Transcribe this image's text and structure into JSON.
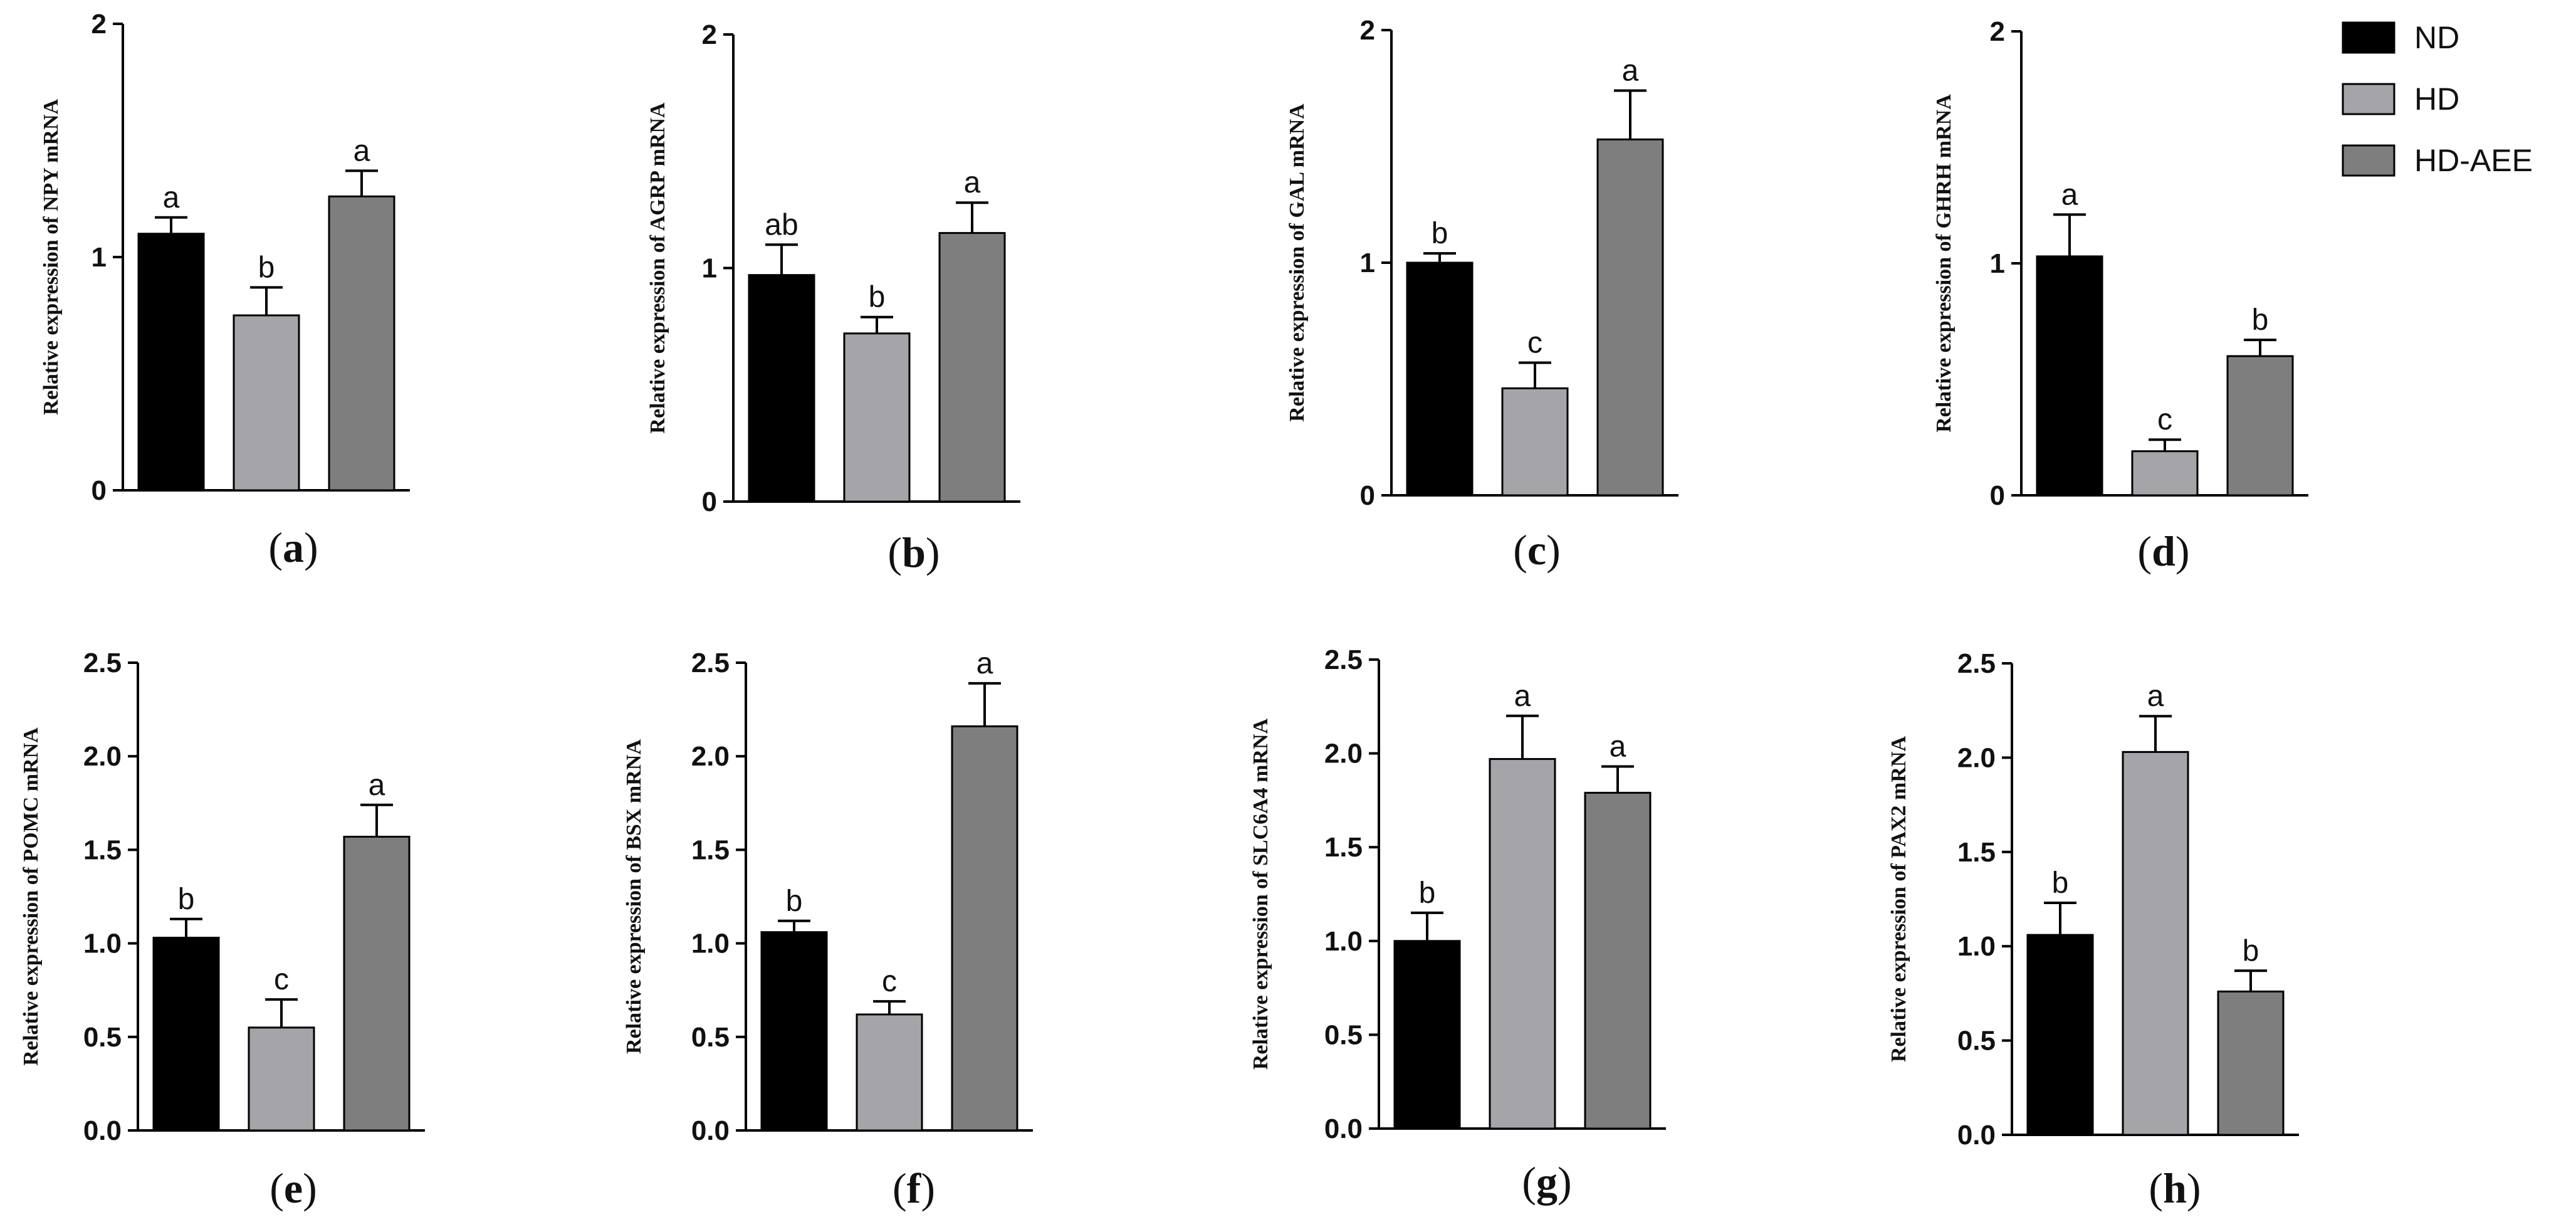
{
  "legend": [
    {
      "name": "ND",
      "color": "#000000"
    },
    {
      "name": "HD",
      "color": "#a5a5a9"
    },
    {
      "name": "HD-AEE",
      "color": "#7e7e7e"
    }
  ],
  "chart_data": [
    {
      "type": "bar",
      "panel": "a",
      "title": "",
      "ylabel": "Relative expression of NPY mRNA",
      "xlabel": "",
      "categories": [
        "ND",
        "HD",
        "HD-AEE"
      ],
      "values": [
        1.1,
        0.75,
        1.26
      ],
      "errors": [
        0.07,
        0.12,
        0.11
      ],
      "significance": [
        "a",
        "b",
        "a"
      ],
      "ylim": [
        0,
        2
      ],
      "yticks": [
        "0",
        "1",
        "2"
      ]
    },
    {
      "type": "bar",
      "panel": "b",
      "title": "",
      "ylabel": "Relative expression of AGRP mRNA",
      "xlabel": "",
      "categories": [
        "ND",
        "HD",
        "HD-AEE"
      ],
      "values": [
        0.97,
        0.72,
        1.15
      ],
      "errors": [
        0.13,
        0.07,
        0.13
      ],
      "significance": [
        "ab",
        "b",
        "a"
      ],
      "ylim": [
        0,
        2
      ],
      "yticks": [
        "0",
        "1",
        "2"
      ]
    },
    {
      "type": "bar",
      "panel": "c",
      "title": "",
      "ylabel": "Relative expression of GAL mRNA",
      "xlabel": "",
      "categories": [
        "ND",
        "HD",
        "HD-AEE"
      ],
      "values": [
        1.0,
        0.46,
        1.53
      ],
      "errors": [
        0.04,
        0.11,
        0.21
      ],
      "significance": [
        "b",
        "c",
        "a"
      ],
      "ylim": [
        0,
        2
      ],
      "yticks": [
        "0",
        "1",
        "2"
      ]
    },
    {
      "type": "bar",
      "panel": "d",
      "title": "",
      "ylabel": "Relative expression of GHRH mRNA",
      "xlabel": "",
      "categories": [
        "ND",
        "HD",
        "HD-AEE"
      ],
      "values": [
        1.03,
        0.19,
        0.6
      ],
      "errors": [
        0.18,
        0.05,
        0.07
      ],
      "significance": [
        "a",
        "c",
        "b"
      ],
      "ylim": [
        0,
        2
      ],
      "yticks": [
        "0",
        "1",
        "2"
      ]
    },
    {
      "type": "bar",
      "panel": "e",
      "title": "",
      "ylabel": "Relative expression of POMC mRNA",
      "xlabel": "",
      "categories": [
        "ND",
        "HD",
        "HD-AEE"
      ],
      "values": [
        1.03,
        0.55,
        1.57
      ],
      "errors": [
        0.1,
        0.15,
        0.17
      ],
      "significance": [
        "b",
        "c",
        "a"
      ],
      "ylim": [
        0,
        2.5
      ],
      "yticks": [
        "0.0",
        "0.5",
        "1.0",
        "1.5",
        "2.0",
        "2.5"
      ]
    },
    {
      "type": "bar",
      "panel": "f",
      "title": "",
      "ylabel": "Relative expression of BSX mRNA",
      "xlabel": "",
      "categories": [
        "ND",
        "HD",
        "HD-AEE"
      ],
      "values": [
        1.06,
        0.62,
        2.16
      ],
      "errors": [
        0.06,
        0.07,
        0.23
      ],
      "significance": [
        "b",
        "c",
        "a"
      ],
      "ylim": [
        0,
        2.5
      ],
      "yticks": [
        "0.0",
        "0.5",
        "1.0",
        "1.5",
        "2.0",
        "2.5"
      ]
    },
    {
      "type": "bar",
      "panel": "g",
      "title": "",
      "ylabel": "Relative expression of SLC6A4 mRNA",
      "xlabel": "",
      "categories": [
        "ND",
        "HD",
        "HD-AEE"
      ],
      "values": [
        1.0,
        1.97,
        1.79
      ],
      "errors": [
        0.15,
        0.23,
        0.14
      ],
      "significance": [
        "b",
        "a",
        "a"
      ],
      "ylim": [
        0,
        2.5
      ],
      "yticks": [
        "0.0",
        "0.5",
        "1.0",
        "1.5",
        "2.0",
        "2.5"
      ]
    },
    {
      "type": "bar",
      "panel": "h",
      "title": "",
      "ylabel": "Relative expression of PAX2 mRNA",
      "xlabel": "",
      "categories": [
        "ND",
        "HD",
        "HD-AEE"
      ],
      "values": [
        1.06,
        2.03,
        0.76
      ],
      "errors": [
        0.17,
        0.19,
        0.11
      ],
      "significance": [
        "b",
        "a",
        "b"
      ],
      "ylim": [
        0,
        2.5
      ],
      "yticks": [
        "0.0",
        "0.5",
        "1.0",
        "1.5",
        "2.0",
        "2.5"
      ]
    }
  ]
}
